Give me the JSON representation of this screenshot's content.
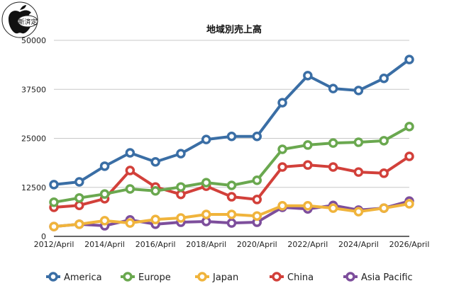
{
  "logo": {
    "text": "新済定"
  },
  "chart_data": {
    "type": "line",
    "title": "地域別売上高",
    "xlabel": "",
    "ylabel": "",
    "ylim": [
      0,
      50000
    ],
    "yticks": [
      "0",
      "12500",
      "25000",
      "37500",
      "50000"
    ],
    "x": [
      "2012/April",
      "2013/April",
      "2014/April",
      "2015/April",
      "2016/April",
      "2017/April",
      "2018/April",
      "2019/April",
      "2020/April",
      "2021/April",
      "2022/April",
      "2023/April",
      "2024/April",
      "2025/April",
      "2026/April"
    ],
    "xtick_labels": [
      "2012/April",
      "2014/April",
      "2016/April",
      "2018/April",
      "2020/April",
      "2022/April",
      "2024/April",
      "2026/April"
    ],
    "grid": "horizontal",
    "legend": "bottom",
    "series": [
      {
        "name": "America",
        "color": "#3a6ea5",
        "values": [
          13200,
          13900,
          17900,
          21300,
          19000,
          21100,
          24700,
          25500,
          25500,
          34100,
          41000,
          37700,
          37200,
          40300,
          45100
        ]
      },
      {
        "name": "Europe",
        "color": "#6aa84f",
        "values": [
          8700,
          9800,
          10800,
          12100,
          11600,
          12600,
          13700,
          13000,
          14300,
          22200,
          23300,
          23800,
          24000,
          24400,
          28000
        ]
      },
      {
        "name": "Japan",
        "color": "#f0b43c",
        "values": [
          2500,
          3100,
          4000,
          3400,
          4300,
          4700,
          5600,
          5600,
          5200,
          7800,
          7800,
          7200,
          6300,
          7200,
          8300
        ]
      },
      {
        "name": "China",
        "color": "#d2403a",
        "values": [
          7400,
          7900,
          9600,
          16800,
          12600,
          10700,
          12800,
          10100,
          9400,
          17700,
          18200,
          17700,
          16400,
          16100,
          20400
        ]
      },
      {
        "name": "Asia Pacific",
        "color": "#7d4e9c",
        "values": [
          2500,
          3100,
          2700,
          4200,
          3100,
          3600,
          3800,
          3400,
          3600,
          7400,
          7000,
          7900,
          6700,
          7200,
          9000
        ]
      }
    ]
  }
}
